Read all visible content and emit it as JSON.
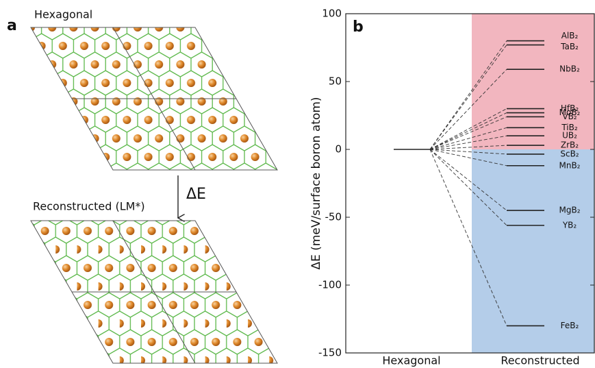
{
  "panel_a": {
    "label": "a",
    "top_title": "Hexagonal",
    "arrow_label": "ΔE",
    "bottom_title": "Reconstructed (LM*)"
  },
  "chart_data": {
    "type": "energy_level",
    "panel_label": "b",
    "y_label": "ΔE (meV/surface boron atom)",
    "categories": [
      "Hexagonal",
      "Reconstructed"
    ],
    "reference_value": 0,
    "levels": {
      "labels": [
        "AlB₂",
        "TaB₂",
        "NbB₂",
        "HfB₂",
        "MoB₂",
        "VB₂",
        "TiB₂",
        "UB₂",
        "ZrB₂",
        "ScB₂",
        "MnB₂",
        "MgB₂",
        "YB₂",
        "FeB₂"
      ],
      "values": [
        80,
        77,
        59,
        30,
        27,
        24,
        16,
        10,
        3,
        -3.5,
        -12,
        -45,
        -56,
        -130
      ]
    },
    "above_color": "#f2b6bf",
    "below_color": "#b4cde9",
    "line_color": "#222222",
    "ylim": [
      -150,
      100
    ],
    "yticks": [
      -150,
      -100,
      -50,
      0,
      50,
      100
    ]
  }
}
